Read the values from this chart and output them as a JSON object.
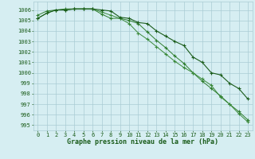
{
  "x": [
    0,
    1,
    2,
    3,
    4,
    5,
    6,
    7,
    8,
    9,
    10,
    11,
    12,
    13,
    14,
    15,
    16,
    17,
    18,
    19,
    20,
    21,
    22,
    23
  ],
  "series1": [
    1005.2,
    1005.7,
    1006.0,
    1006.0,
    1006.1,
    1006.1,
    1006.1,
    1006.0,
    1005.9,
    1005.3,
    1005.2,
    1004.8,
    1004.7,
    1004.0,
    1003.5,
    1003.0,
    1002.6,
    1001.5,
    1001.0,
    1000.0,
    999.8,
    999.0,
    998.5,
    997.5
  ],
  "series2": [
    1005.5,
    1005.9,
    1006.0,
    1006.1,
    1006.1,
    1006.1,
    1006.1,
    1005.6,
    1005.2,
    1005.2,
    1005.0,
    1004.7,
    1003.9,
    1003.1,
    1002.4,
    1001.6,
    1000.9,
    1000.0,
    999.2,
    998.5,
    997.8,
    997.0,
    996.3,
    995.5
  ],
  "series3": [
    1005.2,
    1005.7,
    1006.0,
    1006.0,
    1006.1,
    1006.1,
    1006.1,
    1005.8,
    1005.5,
    1005.2,
    1004.7,
    1003.8,
    1003.2,
    1002.5,
    1001.8,
    1001.1,
    1000.5,
    1000.0,
    999.4,
    998.8,
    997.7,
    997.0,
    996.1,
    995.3
  ],
  "bg_color": "#d6eef2",
  "grid_color": "#aaccd4",
  "line_color1": "#1a5c1a",
  "line_color2": "#2e7d2e",
  "line_color3": "#3a8a3a",
  "xlabel": "Graphe pression niveau de la mer (hPa)",
  "ylim": [
    994.5,
    1006.8
  ],
  "xlim": [
    -0.5,
    23.5
  ],
  "yticks": [
    995,
    996,
    997,
    998,
    999,
    1000,
    1001,
    1002,
    1003,
    1004,
    1005,
    1006
  ],
  "xticks": [
    0,
    1,
    2,
    3,
    4,
    5,
    6,
    7,
    8,
    9,
    10,
    11,
    12,
    13,
    14,
    15,
    16,
    17,
    18,
    19,
    20,
    21,
    22,
    23
  ],
  "tick_fontsize": 5.0,
  "xlabel_fontsize": 6.0
}
